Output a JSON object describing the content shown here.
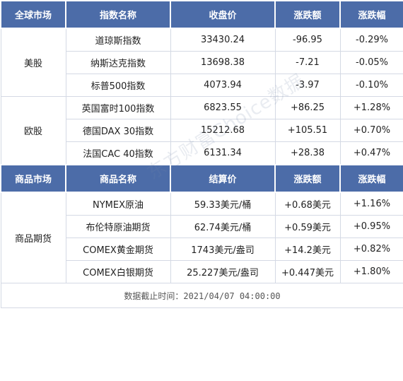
{
  "header1": [
    "全球市场",
    "指数名称",
    "收盘价",
    "涨跌额",
    "涨跌幅"
  ],
  "header2": [
    "商品市场",
    "商品名称",
    "结算价",
    "涨跌额",
    "涨跌幅"
  ],
  "us": {
    "region": "美股",
    "rows": [
      [
        "道琼斯指数",
        "33430.24",
        "-96.95",
        "-0.29%"
      ],
      [
        "纳斯达克指数",
        "13698.38",
        "-7.21",
        "-0.05%"
      ],
      [
        "标普500指数",
        "4073.94",
        "-3.97",
        "-0.10%"
      ]
    ]
  },
  "eu": {
    "region": "欧股",
    "rows": [
      [
        "英国富时100指数",
        "6823.55",
        "+86.25",
        "+1.28%"
      ],
      [
        "德国DAX 30指数",
        "15212.68",
        "+105.51",
        "+0.70%"
      ],
      [
        "法国CAC 40指数",
        "6131.34",
        "+28.38",
        "+0.47%"
      ]
    ]
  },
  "commodity": {
    "region": "商品期货",
    "rows": [
      [
        "NYMEX原油",
        "59.33美元/桶",
        "+0.68美元",
        "+1.16%"
      ],
      [
        "布伦特原油期货",
        "62.74美元/桶",
        "+0.59美元",
        "+0.95%"
      ],
      [
        "COMEX黄金期货",
        "1743美元/盎司",
        "+14.2美元",
        "+0.82%"
      ],
      [
        "COMEX白银期货",
        "25.227美元/盎司",
        "+0.447美元",
        "+1.80%"
      ]
    ]
  },
  "footer": "数据截止时间：2021/04/07 04:00:00",
  "watermark": "东方财富Choice数据"
}
